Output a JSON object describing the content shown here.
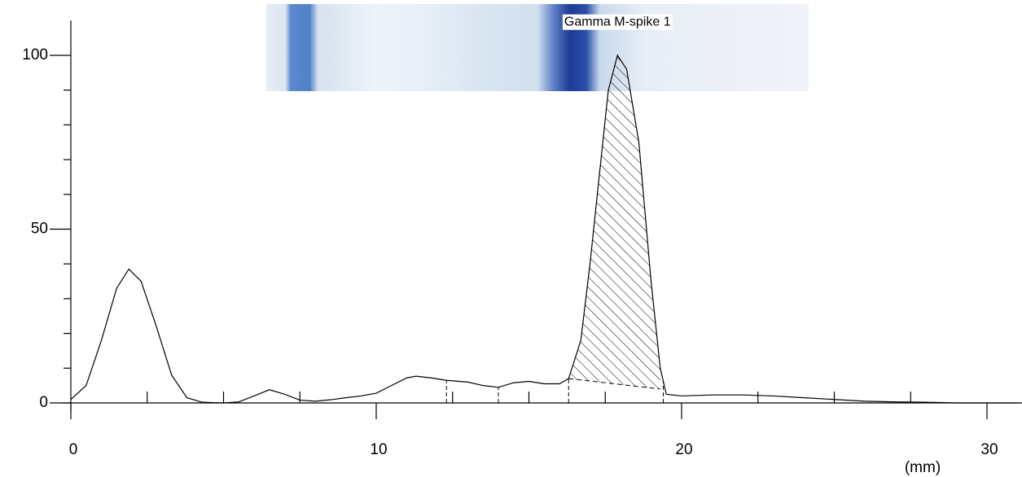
{
  "chart_data": {
    "type": "line",
    "x_label": "(mm)",
    "annotation": {
      "text": "Gamma M-spike 1",
      "x": 17.9,
      "y": 102
    },
    "x": [
      0,
      0.5,
      1,
      1.5,
      1.9,
      2.3,
      2.8,
      3.3,
      3.8,
      4.3,
      5,
      5.5,
      6,
      6.5,
      7,
      7.5,
      8,
      8.5,
      9,
      9.5,
      10,
      10.5,
      11,
      11.3,
      11.8,
      12.3,
      13,
      13.5,
      14,
      14.5,
      15,
      15.5,
      16,
      16.3,
      16.7,
      17,
      17.3,
      17.6,
      17.9,
      18.2,
      18.6,
      19,
      19.3,
      19.5,
      20,
      21,
      22,
      23,
      24,
      25,
      26,
      27,
      28,
      29,
      30,
      31
    ],
    "values": [
      1,
      5,
      18,
      33,
      38.5,
      35,
      22,
      8,
      1.5,
      0.2,
      0,
      0.3,
      2,
      3.8,
      2.5,
      0.8,
      0.5,
      0.9,
      1.5,
      2,
      2.8,
      5,
      7.2,
      7.7,
      7.2,
      6.5,
      6,
      5,
      4.5,
      5.8,
      6.2,
      5.5,
      5.5,
      7,
      18,
      40,
      65,
      90,
      100,
      96,
      75,
      35,
      10,
      2.5,
      2,
      2.3,
      2.3,
      2,
      1.5,
      1,
      0.5,
      0.3,
      0.2,
      0,
      0,
      0
    ],
    "color": "#000000",
    "dividers": [
      12.3,
      14,
      16.3,
      19.4
    ],
    "spike_range": [
      16.3,
      19.3
    ],
    "spike_baseline": [
      7,
      4
    ],
    "xlim": [
      0,
      31
    ],
    "xticks": [
      0,
      10,
      20,
      30
    ],
    "xminor_ticks": [
      2.5,
      5,
      7.5,
      12.5,
      15,
      17.5,
      22.5,
      25,
      27.5
    ],
    "ylim": [
      0,
      110
    ],
    "yticks": [
      0,
      50,
      100
    ],
    "yminor_ticks": [
      10,
      20,
      30,
      40,
      60,
      70,
      80,
      90
    ]
  }
}
